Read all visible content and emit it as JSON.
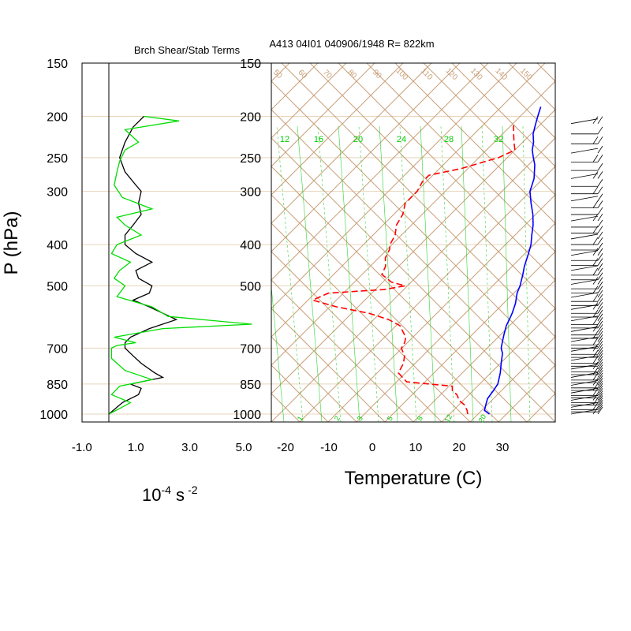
{
  "titles": {
    "left_title": "Brch Shear/Stab Terms",
    "right_title": "A413 04I01 040906/1948 R= 822km"
  },
  "left_panel": {
    "x_ticks": [
      "-1.0",
      "1.0",
      "3.0",
      "5.0"
    ],
    "units_base": "10",
    "units_exp1": "-4",
    "units_mid": " s",
    "units_exp2": "-2"
  },
  "pressure_axis": {
    "label": "P (hPa)",
    "ticks": [
      "150",
      "200",
      "250",
      "300",
      "400",
      "500",
      "700",
      "850",
      "1000"
    ]
  },
  "skewt": {
    "x_label": "Temperature (C)",
    "x_ticks": [
      "-20",
      "-10",
      "0",
      "10",
      "20",
      "30"
    ],
    "mixing_ratio_labels": [
      "12",
      "16",
      "20",
      "24",
      "28",
      "32"
    ],
    "mixing_ratio_bottom_labels": [
      "1",
      "2",
      "3",
      "5",
      "8",
      "12",
      "20"
    ],
    "theta_labels": [
      "50",
      "60",
      "70",
      "80",
      "90",
      "100",
      "110",
      "120",
      "130",
      "140",
      "150"
    ]
  },
  "colors": {
    "temperature": "#0000ff",
    "dewpoint": "#ff0000",
    "adiabat": "#c8a07a",
    "mixing_ratio": "#00cc00",
    "shear_term": "#000000",
    "stab_term": "#00dd00",
    "isobar": "#e8d4bb"
  },
  "chart_data": [
    {
      "type": "line",
      "title": "Brch Shear/Stab Terms",
      "xlabel": "10^-4 s^-2",
      "ylabel": "P (hPa)",
      "xlim": [
        -1.0,
        5.4
      ],
      "ylim": [
        1000,
        150
      ],
      "y_scale": "log",
      "series": [
        {
          "color": "#000000",
          "p": [
            200,
            212,
            230,
            250,
            270,
            290,
            300,
            320,
            340,
            360,
            380,
            400,
            420,
            440,
            460,
            480,
            500,
            520,
            540,
            560,
            600,
            630,
            660,
            680,
            700,
            730,
            760,
            800,
            820,
            850,
            870,
            900,
            940,
            1000
          ],
          "values": [
            1.3,
            0.9,
            0.6,
            0.4,
            0.6,
            1.0,
            1.2,
            1.1,
            1.2,
            0.9,
            0.6,
            0.6,
            1.0,
            1.6,
            1.0,
            1.1,
            1.6,
            1.5,
            0.9,
            1.5,
            2.5,
            1.5,
            0.8,
            0.6,
            0.6,
            0.9,
            1.2,
            1.7,
            2.0,
            0.8,
            1.2,
            1.1,
            0.5,
            0.0
          ]
        },
        {
          "color": "#00dd00",
          "p": [
            200,
            205,
            215,
            230,
            240,
            255,
            270,
            290,
            310,
            330,
            345,
            360,
            380,
            400,
            420,
            440,
            460,
            480,
            500,
            530,
            560,
            590,
            615,
            630,
            660,
            680,
            690,
            700,
            740,
            790,
            830,
            860,
            900,
            940,
            970,
            1000
          ],
          "values": [
            1.3,
            2.6,
            0.6,
            1.1,
            0.6,
            0.4,
            0.3,
            0.2,
            0.5,
            1.6,
            0.3,
            0.6,
            1.2,
            0.3,
            0.1,
            0.8,
            0.4,
            0.2,
            0.6,
            0.3,
            1.6,
            2.2,
            5.3,
            2.0,
            0.2,
            1.0,
            0.3,
            0.1,
            0.1,
            0.6,
            1.6,
            0.4,
            0.1,
            0.8,
            0.4,
            0.0
          ]
        }
      ]
    },
    {
      "type": "line",
      "title": "A413 04I01 040906/1948 R= 822km",
      "xlabel": "Temperature (C)",
      "ylabel": "P (hPa)",
      "xlim": [
        -24,
        40
      ],
      "ylim": [
        1000,
        150
      ],
      "y_scale": "log",
      "series": [
        {
          "color": "#0000ff",
          "p": [
            1000,
            980,
            950,
            920,
            880,
            850,
            800,
            760,
            720,
            700,
            680,
            650,
            620,
            600,
            580,
            550,
            520,
            500,
            470,
            450,
            420,
            400,
            380,
            360,
            340,
            320,
            300,
            280,
            260,
            250,
            240,
            230,
            220,
            210,
            200,
            190
          ],
          "values": [
            27.0,
            25.0,
            24.0,
            23.0,
            22.5,
            22.0,
            20.0,
            18.0,
            16.0,
            14.5,
            13.5,
            12.0,
            10.5,
            9.8,
            9.0,
            7.5,
            5.5,
            4.5,
            2.5,
            1.0,
            -1.0,
            -2.5,
            -4.5,
            -6.5,
            -9.0,
            -12.0,
            -15.0,
            -17.0,
            -20.0,
            -22.0,
            -24.0,
            -25.5,
            -27.5,
            -29.0,
            -30.5,
            -32.0
          ]
        },
        {
          "color": "#ff0000",
          "p": [
            1000,
            980,
            950,
            930,
            900,
            880,
            860,
            840,
            820,
            800,
            780,
            760,
            730,
            700,
            680,
            660,
            640,
            620,
            600,
            580,
            560,
            540,
            520,
            510,
            500,
            490,
            470,
            450,
            430,
            410,
            400,
            380,
            360,
            340,
            320,
            300,
            285,
            275,
            265,
            250,
            240,
            230,
            220,
            210
          ],
          "values": [
            22.0,
            21.0,
            19.0,
            17.0,
            15.0,
            13.0,
            12.0,
            0.5,
            -1.5,
            -3.5,
            -4.0,
            -4.5,
            -6.0,
            -8.5,
            -9.0,
            -10.0,
            -12.0,
            -14.0,
            -18.0,
            -24.0,
            -33.0,
            -40.0,
            -38.0,
            -26.0,
            -22.0,
            -26.0,
            -30.0,
            -31.0,
            -33.0,
            -34.0,
            -35.0,
            -36.0,
            -38.0,
            -39.0,
            -41.0,
            -41.0,
            -42.0,
            -42.0,
            -36.0,
            -30.0,
            -28.0,
            -30.0,
            -32.0,
            -34.0
          ]
        }
      ]
    }
  ]
}
